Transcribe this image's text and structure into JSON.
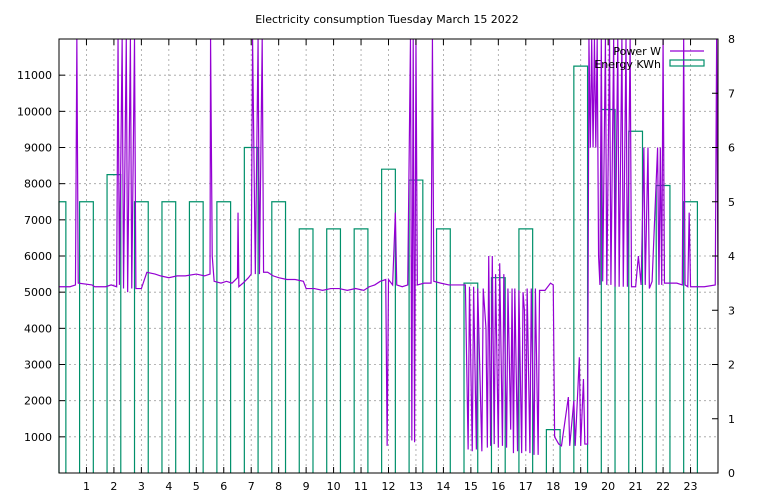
{
  "chart_data": {
    "type": "line",
    "title": "Electricity consumption Tuesday March 15 2022",
    "xlabel": "",
    "ylabel": "",
    "y2label": "",
    "x_ticks": [
      1,
      2,
      3,
      4,
      5,
      6,
      7,
      8,
      9,
      10,
      11,
      12,
      13,
      14,
      15,
      16,
      17,
      18,
      19,
      20,
      21,
      22,
      23
    ],
    "xlim": [
      0,
      24
    ],
    "ylim": [
      0,
      12000
    ],
    "y_ticks": [
      1000,
      2000,
      3000,
      4000,
      5000,
      6000,
      7000,
      8000,
      9000,
      10000,
      11000
    ],
    "y2lim": [
      0,
      8
    ],
    "y2_ticks": [
      0,
      1,
      2,
      3,
      4,
      5,
      6,
      7,
      8
    ],
    "grid": true,
    "legend_position": "top-right",
    "series": [
      {
        "name": "Power W",
        "axis": "y",
        "style": "line",
        "color": "#9400d3",
        "points": [
          [
            0.0,
            5150
          ],
          [
            0.4,
            5150
          ],
          [
            0.6,
            5200
          ],
          [
            0.65,
            12000
          ],
          [
            0.7,
            5250
          ],
          [
            1.2,
            5200
          ],
          [
            1.3,
            5150
          ],
          [
            1.7,
            5150
          ],
          [
            1.9,
            5200
          ],
          [
            2.1,
            5150
          ],
          [
            2.15,
            12000
          ],
          [
            2.2,
            5200
          ],
          [
            2.3,
            12000
          ],
          [
            2.35,
            5100
          ],
          [
            2.45,
            12000
          ],
          [
            2.5,
            5000
          ],
          [
            2.6,
            12000
          ],
          [
            2.65,
            5100
          ],
          [
            2.75,
            12000
          ],
          [
            2.8,
            5100
          ],
          [
            3.0,
            5100
          ],
          [
            3.2,
            5550
          ],
          [
            3.5,
            5500
          ],
          [
            3.7,
            5450
          ],
          [
            4.0,
            5400
          ],
          [
            4.3,
            5450
          ],
          [
            4.6,
            5450
          ],
          [
            5.0,
            5500
          ],
          [
            5.3,
            5450
          ],
          [
            5.5,
            5500
          ],
          [
            5.52,
            12000
          ],
          [
            5.58,
            6000
          ],
          [
            5.65,
            5300
          ],
          [
            5.9,
            5250
          ],
          [
            6.1,
            5300
          ],
          [
            6.3,
            5250
          ],
          [
            6.5,
            5400
          ],
          [
            6.52,
            7200
          ],
          [
            6.55,
            5150
          ],
          [
            6.7,
            5250
          ],
          [
            6.9,
            5400
          ],
          [
            7.0,
            5500
          ],
          [
            7.05,
            12000
          ],
          [
            7.15,
            5500
          ],
          [
            7.25,
            12000
          ],
          [
            7.3,
            5500
          ],
          [
            7.4,
            12000
          ],
          [
            7.45,
            5550
          ],
          [
            7.6,
            5550
          ],
          [
            7.8,
            5450
          ],
          [
            8.0,
            5400
          ],
          [
            8.3,
            5350
          ],
          [
            8.6,
            5350
          ],
          [
            8.9,
            5300
          ],
          [
            9.0,
            5100
          ],
          [
            9.3,
            5100
          ],
          [
            9.6,
            5050
          ],
          [
            9.9,
            5100
          ],
          [
            10.2,
            5100
          ],
          [
            10.5,
            5050
          ],
          [
            10.8,
            5100
          ],
          [
            11.1,
            5050
          ],
          [
            11.3,
            5150
          ],
          [
            11.5,
            5200
          ],
          [
            11.7,
            5300
          ],
          [
            11.9,
            5350
          ],
          [
            11.95,
            750
          ],
          [
            12.0,
            5350
          ],
          [
            12.15,
            5200
          ],
          [
            12.25,
            7200
          ],
          [
            12.3,
            5200
          ],
          [
            12.5,
            5150
          ],
          [
            12.7,
            5200
          ],
          [
            12.8,
            12000
          ],
          [
            12.85,
            900
          ],
          [
            12.9,
            12000
          ],
          [
            12.95,
            850
          ],
          [
            13.0,
            12000
          ],
          [
            13.05,
            5200
          ],
          [
            13.3,
            5250
          ],
          [
            13.55,
            5250
          ],
          [
            13.6,
            12000
          ],
          [
            13.65,
            5300
          ],
          [
            13.9,
            5250
          ],
          [
            14.2,
            5200
          ],
          [
            14.5,
            5200
          ],
          [
            14.8,
            5200
          ],
          [
            14.9,
            650
          ],
          [
            14.95,
            5150
          ],
          [
            15.05,
            600
          ],
          [
            15.1,
            5150
          ],
          [
            15.2,
            650
          ],
          [
            15.25,
            5100
          ],
          [
            15.4,
            600
          ],
          [
            15.45,
            5100
          ],
          [
            15.55,
            4000
          ],
          [
            15.6,
            700
          ],
          [
            15.65,
            6000
          ],
          [
            15.72,
            750
          ],
          [
            15.78,
            6000
          ],
          [
            15.85,
            800
          ],
          [
            15.9,
            5500
          ],
          [
            16.0,
            700
          ],
          [
            16.05,
            5800
          ],
          [
            16.15,
            750
          ],
          [
            16.2,
            5500
          ],
          [
            16.3,
            700
          ],
          [
            16.35,
            5100
          ],
          [
            16.45,
            1200
          ],
          [
            16.5,
            5100
          ],
          [
            16.55,
            550
          ],
          [
            16.6,
            5100
          ],
          [
            16.7,
            600
          ],
          [
            16.75,
            5050
          ],
          [
            16.85,
            550
          ],
          [
            16.9,
            5000
          ],
          [
            16.95,
            4500
          ],
          [
            17.0,
            600
          ],
          [
            17.05,
            5100
          ],
          [
            17.15,
            550
          ],
          [
            17.2,
            5100
          ],
          [
            17.3,
            500
          ],
          [
            17.35,
            5100
          ],
          [
            17.45,
            500
          ],
          [
            17.5,
            5050
          ],
          [
            17.7,
            5050
          ],
          [
            17.9,
            5250
          ],
          [
            18.0,
            5200
          ],
          [
            18.05,
            1000
          ],
          [
            18.2,
            800
          ],
          [
            18.3,
            750
          ],
          [
            18.55,
            2100
          ],
          [
            18.6,
            750
          ],
          [
            18.75,
            2000
          ],
          [
            18.8,
            750
          ],
          [
            18.95,
            3200
          ],
          [
            19.0,
            750
          ],
          [
            19.1,
            2600
          ],
          [
            19.15,
            800
          ],
          [
            19.25,
            800
          ],
          [
            19.3,
            12000
          ],
          [
            19.35,
            9000
          ],
          [
            19.4,
            12000
          ],
          [
            19.45,
            9000
          ],
          [
            19.5,
            12000
          ],
          [
            19.55,
            9000
          ],
          [
            19.6,
            12000
          ],
          [
            19.65,
            6000
          ],
          [
            19.7,
            5200
          ],
          [
            19.75,
            12000
          ],
          [
            19.8,
            5300
          ],
          [
            19.9,
            12000
          ],
          [
            19.95,
            5200
          ],
          [
            20.05,
            12000
          ],
          [
            20.1,
            5200
          ],
          [
            20.2,
            12000
          ],
          [
            20.25,
            5150
          ],
          [
            20.35,
            12000
          ],
          [
            20.4,
            5150
          ],
          [
            20.5,
            12000
          ],
          [
            20.55,
            5150
          ],
          [
            20.65,
            12000
          ],
          [
            20.7,
            5150
          ],
          [
            20.8,
            12000
          ],
          [
            20.85,
            5150
          ],
          [
            21.0,
            5150
          ],
          [
            21.1,
            6000
          ],
          [
            21.2,
            5200
          ],
          [
            21.3,
            9000
          ],
          [
            21.35,
            5200
          ],
          [
            21.45,
            9000
          ],
          [
            21.5,
            5100
          ],
          [
            21.6,
            5300
          ],
          [
            21.8,
            9000
          ],
          [
            21.85,
            5200
          ],
          [
            21.9,
            9000
          ],
          [
            21.95,
            5200
          ],
          [
            22.0,
            12000
          ],
          [
            22.05,
            5250
          ],
          [
            22.2,
            5250
          ],
          [
            22.5,
            5250
          ],
          [
            22.7,
            5200
          ],
          [
            22.75,
            12000
          ],
          [
            22.8,
            5200
          ],
          [
            22.9,
            5150
          ],
          [
            22.95,
            7200
          ],
          [
            23.0,
            5150
          ],
          [
            23.5,
            5150
          ],
          [
            23.9,
            5200
          ],
          [
            23.95,
            12000
          ],
          [
            24.0,
            5200
          ]
        ]
      },
      {
        "name": "Energy KWh",
        "axis": "y2",
        "style": "histeps",
        "color": "#00906a",
        "boxwidth": 0.5,
        "points": [
          [
            0.0,
            5.0
          ],
          [
            1.0,
            5.0
          ],
          [
            2.0,
            5.5
          ],
          [
            3.0,
            5.0
          ],
          [
            4.0,
            5.0
          ],
          [
            5.0,
            5.0
          ],
          [
            6.0,
            5.0
          ],
          [
            7.0,
            6.0
          ],
          [
            8.0,
            5.0
          ],
          [
            9.0,
            4.5
          ],
          [
            10.0,
            4.5
          ],
          [
            11.0,
            4.5
          ],
          [
            12.0,
            5.6
          ],
          [
            13.0,
            5.4
          ],
          [
            14.0,
            4.5
          ],
          [
            15.0,
            3.5
          ],
          [
            16.0,
            3.6
          ],
          [
            17.0,
            4.5
          ],
          [
            18.0,
            0.8
          ],
          [
            19.0,
            7.5
          ],
          [
            20.0,
            6.7
          ],
          [
            21.0,
            6.3
          ],
          [
            22.0,
            5.3
          ],
          [
            23.0,
            5.0
          ]
        ]
      }
    ]
  }
}
